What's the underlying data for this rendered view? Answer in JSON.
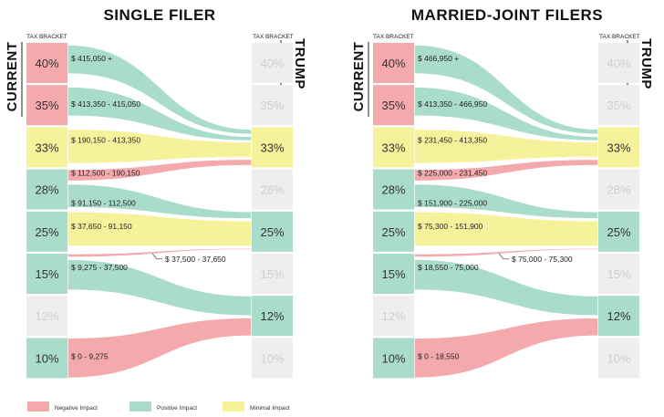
{
  "colors": {
    "negative": "#f4a9ad",
    "positive": "#a9dcc9",
    "minimal": "#f6f29b",
    "empty": "#eeeeee",
    "faded_text": "#cfcfcf",
    "text": "#333333"
  },
  "legend": [
    {
      "key": "negative",
      "label": "Negative Impact"
    },
    {
      "key": "positive",
      "label": "Positive Impact"
    },
    {
      "key": "minimal",
      "label": "Minimal Impact"
    }
  ],
  "panels": [
    {
      "title": "SINGLE FILER",
      "left_side_label": "CURRENT",
      "right_side_label": "TRUMP",
      "left_header": "TAX BRACKET",
      "right_header": "TAX BRACKET",
      "current_brackets": [
        {
          "rate": "40%",
          "impact": "negative"
        },
        {
          "rate": "35%",
          "impact": "negative"
        },
        {
          "rate": "33%",
          "impact": "minimal"
        },
        {
          "rate": "28%",
          "impact": "positive"
        },
        {
          "rate": "25%",
          "impact": "positive"
        },
        {
          "rate": "15%",
          "impact": "positive"
        },
        {
          "rate": "12%",
          "impact": "empty"
        },
        {
          "rate": "10%",
          "impact": "positive"
        }
      ],
      "trump_brackets": [
        {
          "rate": "40%",
          "impact": "empty"
        },
        {
          "rate": "35%",
          "impact": "empty"
        },
        {
          "rate": "33%",
          "impact": "minimal"
        },
        {
          "rate": "28%",
          "impact": "empty"
        },
        {
          "rate": "25%",
          "impact": "positive"
        },
        {
          "rate": "15%",
          "impact": "empty"
        },
        {
          "rate": "12%",
          "impact": "positive"
        },
        {
          "rate": "10%",
          "impact": "empty"
        }
      ],
      "flows": [
        {
          "label": "$ 415,050 +",
          "impact": "positive",
          "from": 0,
          "to": 2
        },
        {
          "label": "$ 413,350 - 415,050",
          "impact": "positive",
          "from": 1,
          "to": 2
        },
        {
          "label": "$ 190,150 - 413,350",
          "impact": "minimal",
          "from": 2,
          "to": 2
        },
        {
          "label": "$ 112,500 - 190,150",
          "impact": "negative",
          "from": 3,
          "to": 2
        },
        {
          "label": "$ 91,150 - 112,500",
          "impact": "positive",
          "from": 3,
          "to": 4
        },
        {
          "label": "$ 37,650 - 91,150",
          "impact": "minimal",
          "from": 4,
          "to": 4
        },
        {
          "label": "$ 37,500 - 37,650",
          "impact": "negative",
          "from": 5,
          "to": 4
        },
        {
          "label": "$ 9,275 - 37,500",
          "impact": "positive",
          "from": 5,
          "to": 6
        },
        {
          "label": "$ 0 - 9,275",
          "impact": "negative",
          "from": 7,
          "to": 6
        }
      ]
    },
    {
      "title": "MARRIED-JOINT FILERS",
      "left_side_label": "CURRENT",
      "right_side_label": "TRUMP",
      "left_header": "TAX BRACKET",
      "right_header": "TAX BRACKET",
      "current_brackets": [
        {
          "rate": "40%",
          "impact": "negative"
        },
        {
          "rate": "35%",
          "impact": "negative"
        },
        {
          "rate": "33%",
          "impact": "minimal"
        },
        {
          "rate": "28%",
          "impact": "positive"
        },
        {
          "rate": "25%",
          "impact": "positive"
        },
        {
          "rate": "15%",
          "impact": "positive"
        },
        {
          "rate": "12%",
          "impact": "empty"
        },
        {
          "rate": "10%",
          "impact": "positive"
        }
      ],
      "trump_brackets": [
        {
          "rate": "40%",
          "impact": "empty"
        },
        {
          "rate": "35%",
          "impact": "empty"
        },
        {
          "rate": "33%",
          "impact": "minimal"
        },
        {
          "rate": "28%",
          "impact": "empty"
        },
        {
          "rate": "25%",
          "impact": "positive"
        },
        {
          "rate": "15%",
          "impact": "empty"
        },
        {
          "rate": "12%",
          "impact": "positive"
        },
        {
          "rate": "10%",
          "impact": "empty"
        }
      ],
      "flows": [
        {
          "label": "$ 466,950 +",
          "impact": "positive",
          "from": 0,
          "to": 2
        },
        {
          "label": "$ 413,350 - 466,950",
          "impact": "positive",
          "from": 1,
          "to": 2
        },
        {
          "label": "$ 231,450 - 413,350",
          "impact": "minimal",
          "from": 2,
          "to": 2
        },
        {
          "label": "$ 225,000 - 231,450",
          "impact": "negative",
          "from": 3,
          "to": 2
        },
        {
          "label": "$ 151,900 - 225,000",
          "impact": "positive",
          "from": 3,
          "to": 4
        },
        {
          "label": "$ 75,300 - 151,900",
          "impact": "minimal",
          "from": 4,
          "to": 4
        },
        {
          "label": "$ 75,000 - 75,300",
          "impact": "negative",
          "from": 5,
          "to": 4
        },
        {
          "label": "$ 18,550 - 75,000",
          "impact": "positive",
          "from": 5,
          "to": 6
        },
        {
          "label": "$ 0 - 18,550",
          "impact": "negative",
          "from": 7,
          "to": 6
        }
      ]
    }
  ]
}
